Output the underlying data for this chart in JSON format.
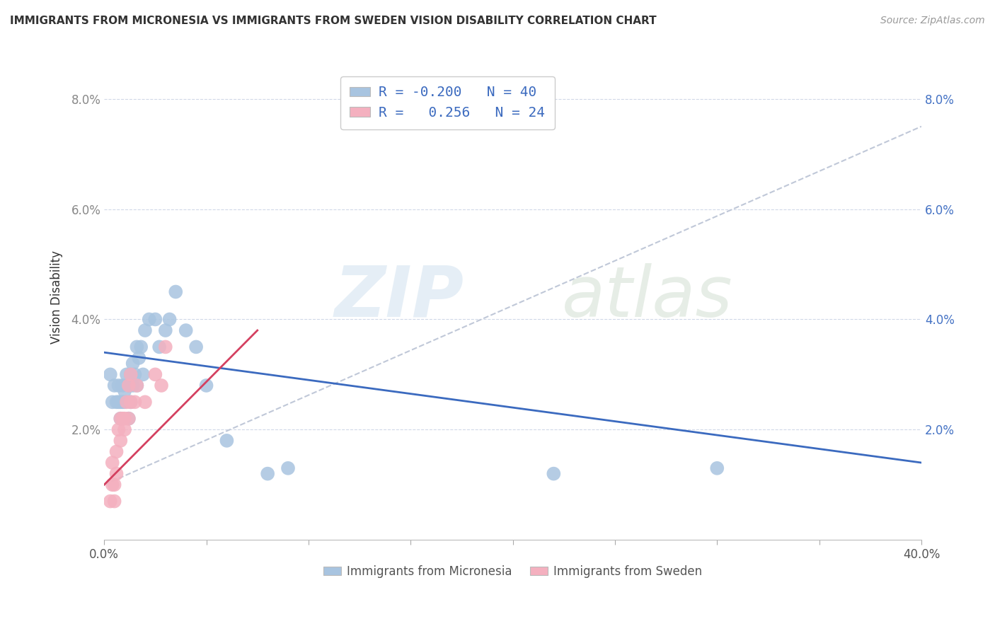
{
  "title": "IMMIGRANTS FROM MICRONESIA VS IMMIGRANTS FROM SWEDEN VISION DISABILITY CORRELATION CHART",
  "source": "Source: ZipAtlas.com",
  "ylabel": "Vision Disability",
  "xlim": [
    0,
    0.4
  ],
  "ylim": [
    0,
    0.088
  ],
  "yticks": [
    0.02,
    0.04,
    0.06,
    0.08
  ],
  "ytick_labels": [
    "2.0%",
    "4.0%",
    "6.0%",
    "8.0%"
  ],
  "xticks": [
    0.0,
    0.05,
    0.1,
    0.15,
    0.2,
    0.25,
    0.3,
    0.35,
    0.4
  ],
  "micronesia_color": "#a8c4e0",
  "sweden_color": "#f4b0bf",
  "trend_micronesia_color": "#3b6abf",
  "trend_sweden_color": "#d44060",
  "trend_gray_color": "#c0c8d8",
  "watermark_zip": "ZIP",
  "watermark_atlas": "atlas",
  "legend_text_color": "#3b6abf",
  "micronesia_x": [
    0.003,
    0.004,
    0.005,
    0.006,
    0.007,
    0.007,
    0.008,
    0.008,
    0.009,
    0.009,
    0.01,
    0.01,
    0.011,
    0.012,
    0.012,
    0.013,
    0.013,
    0.014,
    0.014,
    0.015,
    0.016,
    0.016,
    0.017,
    0.018,
    0.019,
    0.02,
    0.022,
    0.025,
    0.027,
    0.03,
    0.032,
    0.035,
    0.04,
    0.045,
    0.05,
    0.06,
    0.08,
    0.09,
    0.22,
    0.3
  ],
  "micronesia_y": [
    0.03,
    0.025,
    0.028,
    0.025,
    0.028,
    0.025,
    0.025,
    0.022,
    0.028,
    0.025,
    0.027,
    0.025,
    0.03,
    0.028,
    0.022,
    0.03,
    0.025,
    0.032,
    0.028,
    0.03,
    0.035,
    0.028,
    0.033,
    0.035,
    0.03,
    0.038,
    0.04,
    0.04,
    0.035,
    0.038,
    0.04,
    0.045,
    0.038,
    0.035,
    0.028,
    0.018,
    0.012,
    0.013,
    0.012,
    0.013
  ],
  "sweden_x": [
    0.003,
    0.004,
    0.004,
    0.005,
    0.005,
    0.006,
    0.006,
    0.007,
    0.008,
    0.008,
    0.009,
    0.01,
    0.01,
    0.011,
    0.012,
    0.012,
    0.013,
    0.013,
    0.015,
    0.016,
    0.02,
    0.025,
    0.028,
    0.03
  ],
  "sweden_y": [
    0.007,
    0.01,
    0.014,
    0.01,
    0.007,
    0.012,
    0.016,
    0.02,
    0.018,
    0.022,
    0.022,
    0.022,
    0.02,
    0.025,
    0.022,
    0.028,
    0.025,
    0.03,
    0.025,
    0.028,
    0.025,
    0.03,
    0.028,
    0.035
  ],
  "trend_mic_x0": 0.0,
  "trend_mic_y0": 0.034,
  "trend_mic_x1": 0.4,
  "trend_mic_y1": 0.014,
  "trend_swe_x0": 0.0,
  "trend_swe_y0": 0.01,
  "trend_swe_x1": 0.075,
  "trend_swe_y1": 0.038,
  "trend_gray_x0": 0.0,
  "trend_gray_y0": 0.01,
  "trend_gray_x1": 0.4,
  "trend_gray_y1": 0.075
}
